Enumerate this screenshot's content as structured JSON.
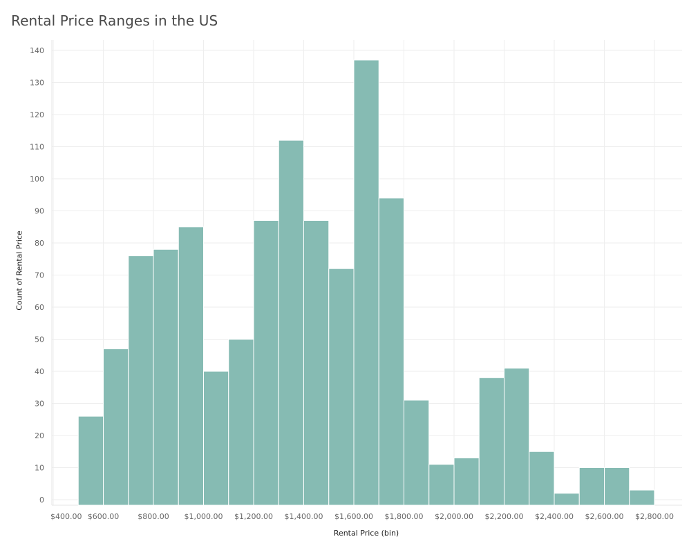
{
  "chart_data": {
    "type": "bar",
    "title": "Rental Price Ranges in the US",
    "xlabel": "Rental Price (bin)",
    "ylabel": "Count of Rental Price",
    "bin_width": 100,
    "bin_starts": [
      500,
      600,
      700,
      800,
      900,
      1000,
      1100,
      1200,
      1300,
      1400,
      1500,
      1600,
      1700,
      1800,
      1900,
      2000,
      2100,
      2200,
      2300,
      2400,
      2500,
      2600,
      2700
    ],
    "values": [
      26,
      47,
      76,
      78,
      85,
      40,
      50,
      87,
      112,
      87,
      72,
      137,
      94,
      31,
      11,
      13,
      38,
      41,
      15,
      2,
      10,
      10,
      3
    ],
    "x_ticks": [
      400,
      600,
      800,
      1000,
      1200,
      1400,
      1600,
      1800,
      2000,
      2200,
      2400,
      2600,
      2800
    ],
    "x_tick_labels": [
      "$400.00",
      "$600.00",
      "$800.00",
      "$1,000.00",
      "$1,200.00",
      "$1,400.00",
      "$1,600.00",
      "$1,800.00",
      "$2,000.00",
      "$2,200.00",
      "$2,400.00",
      "$2,600.00",
      "$2,800.00"
    ],
    "y_ticks": [
      0,
      10,
      20,
      30,
      40,
      50,
      60,
      70,
      80,
      90,
      100,
      110,
      120,
      130,
      140
    ],
    "y_tick_labels": [
      "0",
      "10",
      "20",
      "30",
      "40",
      "50",
      "60",
      "70",
      "80",
      "90",
      "100",
      "110",
      "120",
      "130",
      "140"
    ],
    "xlim": [
      400,
      2800
    ],
    "ylim": [
      0,
      140
    ],
    "grid": true,
    "colors": {
      "bar": "#86bbb3",
      "bar_edge": "#ffffff",
      "grid": "#eeeeee"
    }
  }
}
